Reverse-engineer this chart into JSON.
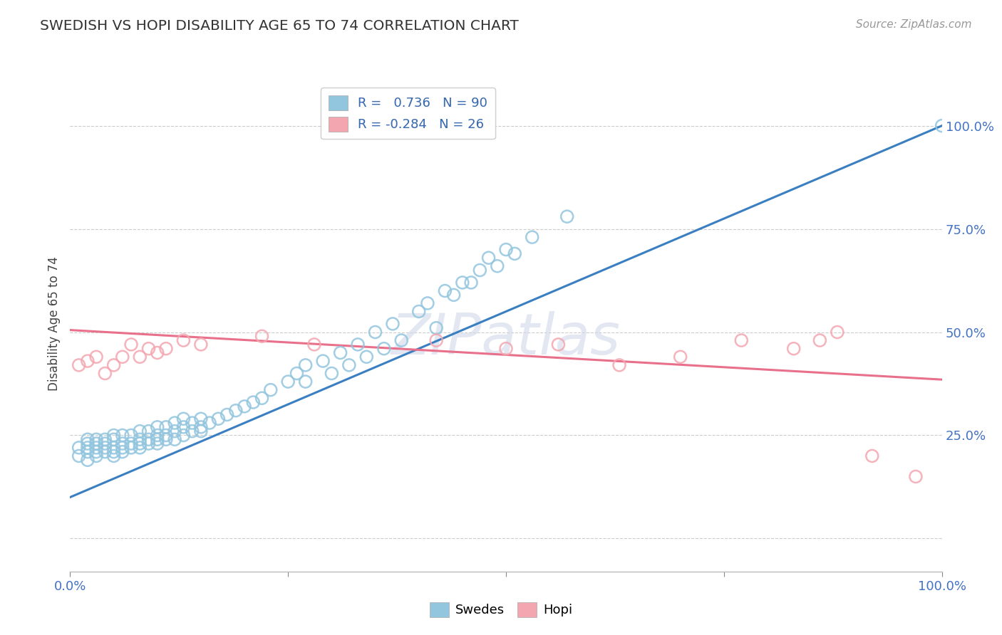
{
  "title": "SWEDISH VS HOPI DISABILITY AGE 65 TO 74 CORRELATION CHART",
  "ylabel": "Disability Age 65 to 74",
  "source_text": "Source: ZipAtlas.com",
  "xlim": [
    0.0,
    1.0
  ],
  "ylim": [
    -0.08,
    1.12
  ],
  "xticks": [
    0.0,
    0.25,
    0.5,
    0.75,
    1.0
  ],
  "xticklabels": [
    "0.0%",
    "",
    "",
    "",
    "100.0%"
  ],
  "ytick_positions": [
    0.0,
    0.25,
    0.5,
    0.75,
    1.0
  ],
  "ytick_labels": [
    "",
    "25.0%",
    "50.0%",
    "75.0%",
    "100.0%"
  ],
  "legend_blue_label": "R =   0.736   N = 90",
  "legend_pink_label": "R = -0.284   N = 26",
  "watermark": "ZIPatlas",
  "blue_color": "#92c5de",
  "pink_color": "#f4a6b0",
  "blue_line_color": "#3a7fc1",
  "pink_line_color": "#e8708a",
  "blue_points_x": [
    0.01,
    0.01,
    0.02,
    0.02,
    0.02,
    0.02,
    0.02,
    0.03,
    0.03,
    0.03,
    0.03,
    0.03,
    0.04,
    0.04,
    0.04,
    0.04,
    0.05,
    0.05,
    0.05,
    0.05,
    0.05,
    0.06,
    0.06,
    0.06,
    0.06,
    0.07,
    0.07,
    0.07,
    0.08,
    0.08,
    0.08,
    0.08,
    0.09,
    0.09,
    0.09,
    0.1,
    0.1,
    0.1,
    0.1,
    0.11,
    0.11,
    0.11,
    0.12,
    0.12,
    0.12,
    0.13,
    0.13,
    0.13,
    0.14,
    0.14,
    0.15,
    0.15,
    0.15,
    0.16,
    0.17,
    0.18,
    0.19,
    0.2,
    0.21,
    0.22,
    0.23,
    0.25,
    0.26,
    0.27,
    0.29,
    0.31,
    0.33,
    0.35,
    0.37,
    0.4,
    0.41,
    0.43,
    0.45,
    0.47,
    0.48,
    0.5,
    0.53,
    0.57,
    0.38,
    0.42,
    0.27,
    0.3,
    0.32,
    0.34,
    0.36,
    0.44,
    0.46,
    0.49,
    0.51,
    1.0
  ],
  "blue_points_y": [
    0.2,
    0.22,
    0.19,
    0.21,
    0.22,
    0.23,
    0.24,
    0.2,
    0.21,
    0.22,
    0.23,
    0.24,
    0.21,
    0.22,
    0.23,
    0.24,
    0.2,
    0.21,
    0.22,
    0.24,
    0.25,
    0.21,
    0.22,
    0.23,
    0.25,
    0.22,
    0.23,
    0.25,
    0.22,
    0.23,
    0.24,
    0.26,
    0.23,
    0.24,
    0.26,
    0.23,
    0.24,
    0.25,
    0.27,
    0.24,
    0.25,
    0.27,
    0.24,
    0.26,
    0.28,
    0.25,
    0.27,
    0.29,
    0.26,
    0.28,
    0.26,
    0.27,
    0.29,
    0.28,
    0.29,
    0.3,
    0.31,
    0.32,
    0.33,
    0.34,
    0.36,
    0.38,
    0.4,
    0.42,
    0.43,
    0.45,
    0.47,
    0.5,
    0.52,
    0.55,
    0.57,
    0.6,
    0.62,
    0.65,
    0.68,
    0.7,
    0.73,
    0.78,
    0.48,
    0.51,
    0.38,
    0.4,
    0.42,
    0.44,
    0.46,
    0.59,
    0.62,
    0.66,
    0.69,
    1.0
  ],
  "pink_points_x": [
    0.01,
    0.02,
    0.03,
    0.04,
    0.05,
    0.06,
    0.07,
    0.08,
    0.09,
    0.1,
    0.11,
    0.13,
    0.15,
    0.22,
    0.28,
    0.42,
    0.5,
    0.56,
    0.63,
    0.7,
    0.77,
    0.83,
    0.86,
    0.88,
    0.92,
    0.97
  ],
  "pink_points_y": [
    0.42,
    0.43,
    0.44,
    0.4,
    0.42,
    0.44,
    0.47,
    0.44,
    0.46,
    0.45,
    0.46,
    0.48,
    0.47,
    0.49,
    0.47,
    0.48,
    0.46,
    0.47,
    0.42,
    0.44,
    0.48,
    0.46,
    0.48,
    0.5,
    0.2,
    0.15
  ]
}
